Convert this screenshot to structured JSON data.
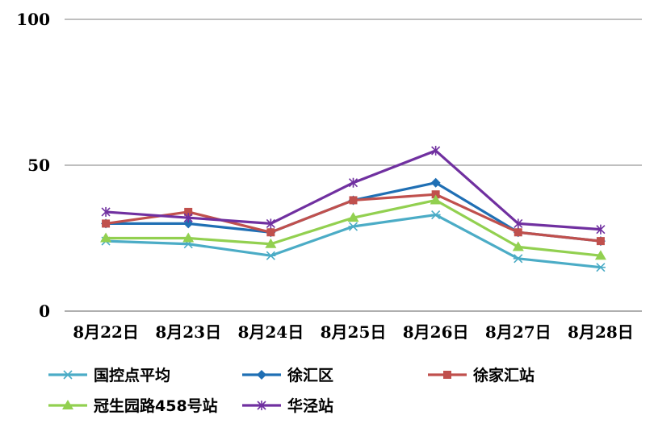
{
  "chart_data": {
    "type": "line",
    "title": "",
    "xlabel": "",
    "ylabel": "",
    "ylim": [
      0,
      100
    ],
    "yticks": [
      0,
      50,
      100
    ],
    "grid": "horizontal",
    "legend_position": "bottom",
    "categories": [
      "8月22日",
      "8月23日",
      "8月24日",
      "8月25日",
      "8月26日",
      "8月27日",
      "8月28日"
    ],
    "series": [
      {
        "name": "国控点平均",
        "color": "#4bacc6",
        "marker": "asterisk",
        "values": [
          24,
          23,
          19,
          29,
          33,
          18,
          15
        ]
      },
      {
        "name": "徐汇区",
        "color": "#1f6fb4",
        "marker": "diamond",
        "values": [
          30,
          30,
          27,
          38,
          44,
          27,
          24
        ]
      },
      {
        "name": "徐家汇站",
        "color": "#c0504d",
        "marker": "square",
        "values": [
          30,
          34,
          27,
          38,
          40,
          27,
          24
        ]
      },
      {
        "name": "冠生园路458号站",
        "color": "#92d050",
        "marker": "triangle",
        "values": [
          25,
          25,
          23,
          32,
          38,
          22,
          19
        ]
      },
      {
        "name": "华泾站",
        "color": "#7030a0",
        "marker": "star",
        "values": [
          34,
          32,
          30,
          44,
          55,
          30,
          28
        ]
      }
    ]
  }
}
